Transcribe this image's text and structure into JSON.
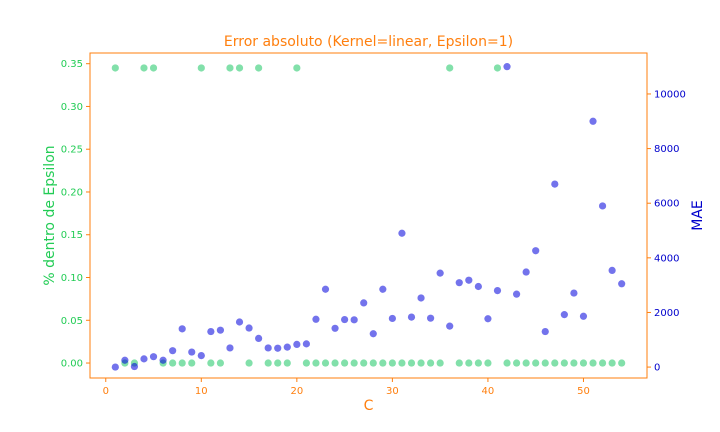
{
  "chart_data": {
    "type": "scatter",
    "title": "Error absoluto (Kernel=linear, Epsilon=1)",
    "xlabel": "C",
    "ylabel_left": "% dentro de Epsilon",
    "ylabel_right": "MAE",
    "xlim": [
      -1.65,
      56.65
    ],
    "ylim_left": [
      -0.0175,
      0.3625
    ],
    "ylim_right": [
      -400,
      11500
    ],
    "x_ticks": [
      0,
      10,
      20,
      30,
      40,
      50
    ],
    "y_left_ticks": [
      "0.00",
      "0.05",
      "0.10",
      "0.15",
      "0.20",
      "0.25",
      "0.30",
      "0.35"
    ],
    "y_right_ticks": [
      0,
      2000,
      4000,
      6000,
      8000,
      10000
    ],
    "grid": false,
    "colors": {
      "title": "#ff7f0e",
      "axes": "#ff7f0e",
      "left_series": "#2ecc71",
      "right_series": "#0000dd",
      "right_axis_text": "#0000cc",
      "left_axis_text": "#22cc55"
    },
    "series": [
      {
        "axis": "left",
        "x": [
          1,
          2,
          3,
          4,
          5,
          6,
          7,
          8,
          9,
          10,
          11,
          12,
          13,
          14,
          15,
          16,
          17,
          18,
          19,
          20,
          21,
          22,
          23,
          24,
          25,
          26,
          27,
          28,
          29,
          30,
          31,
          32,
          33,
          34,
          35,
          36,
          37,
          38,
          39,
          40,
          41,
          42,
          43,
          44,
          45,
          46,
          47,
          48,
          49,
          50,
          51,
          52,
          53,
          54
        ],
        "y": [
          0.345,
          0,
          0,
          0.345,
          0.345,
          0,
          0,
          0,
          0,
          0.345,
          0,
          0,
          0.345,
          0.345,
          0,
          0.345,
          0,
          0,
          0,
          0.345,
          0,
          0,
          0,
          0,
          0,
          0,
          0,
          0,
          0,
          0,
          0,
          0,
          0,
          0,
          0,
          0.345,
          0,
          0,
          0,
          0,
          0.345,
          0,
          0,
          0,
          0,
          0,
          0,
          0,
          0,
          0,
          0,
          0,
          0,
          0
        ]
      },
      {
        "axis": "right",
        "x": [
          1,
          2,
          3,
          4,
          5,
          6,
          7,
          8,
          9,
          10,
          11,
          12,
          13,
          14,
          15,
          16,
          17,
          18,
          19,
          20,
          21,
          22,
          23,
          24,
          25,
          26,
          27,
          28,
          29,
          30,
          31,
          32,
          33,
          34,
          35,
          36,
          37,
          38,
          39,
          40,
          41,
          42,
          43,
          44,
          45,
          46,
          47,
          48,
          49,
          50,
          51,
          52,
          53,
          54
        ],
        "y": [
          0,
          250,
          20,
          300,
          380,
          250,
          600,
          1400,
          550,
          420,
          1300,
          1350,
          700,
          1650,
          1430,
          1050,
          700,
          690,
          730,
          830,
          850,
          1750,
          2850,
          1420,
          1740,
          1730,
          2350,
          1220,
          2850,
          1780,
          4900,
          1830,
          2530,
          1790,
          3440,
          1500,
          3090,
          3180,
          2950,
          1770,
          2800,
          11000,
          2670,
          3480,
          4260,
          1300,
          6700,
          1920,
          2710,
          1860,
          9000,
          5900,
          3540,
          3050
        ]
      }
    ]
  }
}
